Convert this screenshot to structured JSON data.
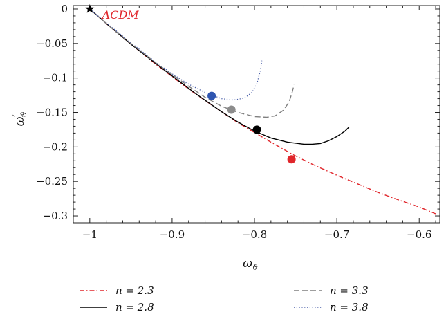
{
  "chart_data": {
    "type": "line",
    "xlabel": "ω",
    "xlabel_sub": "ϑ",
    "ylabel": "ω",
    "ylabel_prime": "′",
    "ylabel_sub": "ϑ",
    "xlim": [
      -1.02,
      -0.575
    ],
    "ylim": [
      -0.31,
      0.005
    ],
    "xticks": [
      -1,
      -0.9,
      -0.8,
      -0.7,
      -0.6
    ],
    "xtick_labels": [
      "−1",
      "−0.9",
      "−0.8",
      "−0.7",
      "−0.6"
    ],
    "yticks": [
      0,
      -0.05,
      -0.1,
      -0.15,
      -0.2,
      -0.25,
      -0.3
    ],
    "ytick_labels": [
      "0",
      "−0.05",
      "−0.1",
      "−0.15",
      "−0.2",
      "−0.25",
      "−0.3"
    ],
    "grid": false,
    "legend_position": "bottom",
    "annotations": [
      {
        "text": "ΛCDM",
        "x": -0.985,
        "y": -0.008,
        "color": "#e0262b"
      }
    ],
    "reference_point": {
      "x": -1.0,
      "y": 0.0,
      "marker": "star"
    },
    "series": [
      {
        "name": "n = 2.3",
        "style": "dashdot",
        "color": "#e0262b",
        "x": [
          -1.0,
          -0.98,
          -0.95,
          -0.92,
          -0.9,
          -0.88,
          -0.85,
          -0.82,
          -0.8,
          -0.78,
          -0.755,
          -0.73,
          -0.7,
          -0.68,
          -0.65,
          -0.62,
          -0.6,
          -0.58
        ],
        "y": [
          0.0,
          -0.021,
          -0.051,
          -0.08,
          -0.098,
          -0.116,
          -0.141,
          -0.165,
          -0.179,
          -0.193,
          -0.21,
          -0.225,
          -0.241,
          -0.251,
          -0.266,
          -0.279,
          -0.287,
          -0.297
        ],
        "marker": {
          "x": -0.755,
          "y": -0.218
        }
      },
      {
        "name": "n = 2.8",
        "style": "solid",
        "color": "#000000",
        "x": [
          -1.0,
          -0.98,
          -0.95,
          -0.92,
          -0.9,
          -0.87,
          -0.84,
          -0.82,
          -0.8,
          -0.78,
          -0.76,
          -0.74,
          -0.73,
          -0.72,
          -0.71,
          -0.7,
          -0.69,
          -0.685
        ],
        "y": [
          0.0,
          -0.021,
          -0.051,
          -0.079,
          -0.097,
          -0.124,
          -0.149,
          -0.164,
          -0.177,
          -0.187,
          -0.193,
          -0.196,
          -0.196,
          -0.195,
          -0.191,
          -0.185,
          -0.177,
          -0.171
        ],
        "marker": {
          "x": -0.797,
          "y": -0.175
        }
      },
      {
        "name": "n = 3.3",
        "style": "dashed",
        "color": "#7f7f7f",
        "x": [
          -1.0,
          -0.98,
          -0.95,
          -0.92,
          -0.9,
          -0.88,
          -0.86,
          -0.84,
          -0.82,
          -0.8,
          -0.785,
          -0.775,
          -0.765,
          -0.758,
          -0.754,
          -0.752
        ],
        "y": [
          0.0,
          -0.021,
          -0.05,
          -0.078,
          -0.095,
          -0.112,
          -0.128,
          -0.141,
          -0.15,
          -0.156,
          -0.157,
          -0.155,
          -0.147,
          -0.135,
          -0.12,
          -0.11
        ],
        "marker": {
          "x": -0.828,
          "y": -0.146
        }
      },
      {
        "name": "n = 3.8",
        "style": "dotted",
        "color": "#4a5fa8",
        "x": [
          -1.0,
          -0.98,
          -0.95,
          -0.92,
          -0.9,
          -0.88,
          -0.86,
          -0.84,
          -0.825,
          -0.812,
          -0.803,
          -0.797,
          -0.793,
          -0.791
        ],
        "y": [
          0.0,
          -0.02,
          -0.049,
          -0.077,
          -0.094,
          -0.109,
          -0.121,
          -0.13,
          -0.132,
          -0.129,
          -0.121,
          -0.108,
          -0.09,
          -0.075
        ],
        "marker": {
          "x": -0.852,
          "y": -0.126
        }
      }
    ]
  },
  "colors": {
    "n23_marker": "#e0262b",
    "n28_marker": "#000000",
    "n33_marker": "#8c8c8c",
    "n38_marker": "#2f55b0"
  }
}
